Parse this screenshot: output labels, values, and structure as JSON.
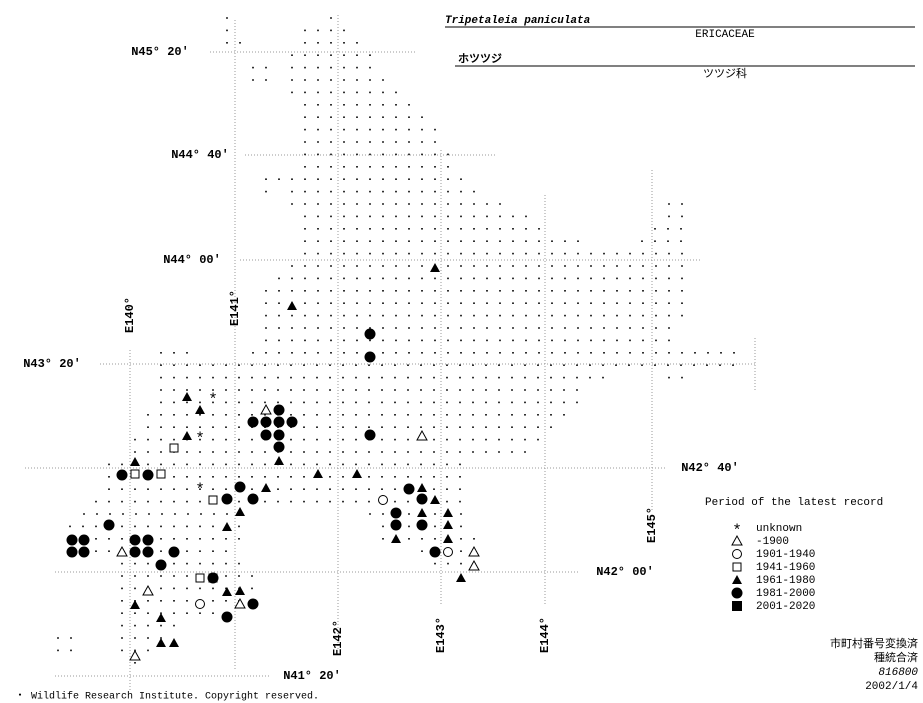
{
  "header": {
    "title": "Tripetaleia paniculata",
    "family": "ERICACEAE",
    "japanese_name": "ホツツジ",
    "japanese_family": "ツツジ科"
  },
  "latitude_labels": [
    "N45° 20′",
    "N44° 40′",
    "N44° 00′",
    "N43° 20′",
    "N42° 40′",
    "N42° 00′",
    "N41° 20′"
  ],
  "longitude_labels": [
    "E140°",
    "E141°",
    "E142°",
    "E143°",
    "E144°",
    "E145°"
  ],
  "legend": {
    "title": "Period of the latest record",
    "items": [
      "unknown",
      "-1900",
      "1901-1940",
      "1941-1960",
      "1961-1980",
      "1981-2000",
      "2001-2020"
    ]
  },
  "footer": [
    "市町村番号変換済",
    "種統合済",
    "816800",
    "2002/1/4"
  ],
  "copyright": "・ Wildlife Research Institute. Copyright reserved."
}
